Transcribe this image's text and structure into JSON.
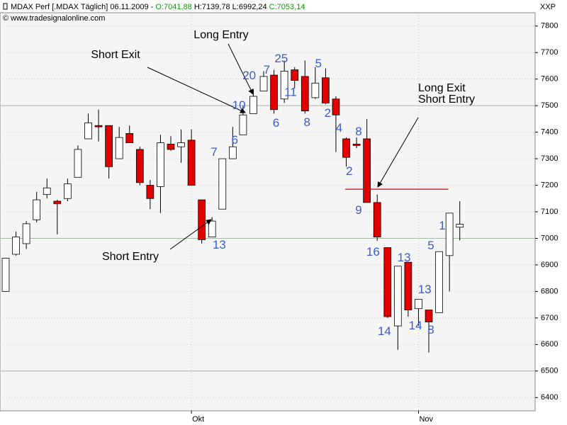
{
  "header": {
    "instrument": "MDAX Perf [.MDAX  Täglich] 06.11.2009 - ",
    "open": "O:7041,88",
    "high": "H:7139,78",
    "low": "L:6992,24",
    "close": "C:7053,14",
    "source": "© www.tradesignalonline.com",
    "corner": "XXP"
  },
  "chart_data": {
    "type": "candlestick",
    "open": [
      6800,
      6940,
      6980,
      7070,
      7165,
      7140,
      7150,
      7230,
      7375,
      7425,
      7425,
      7300,
      7395,
      7335,
      7200,
      7195,
      7355,
      7345,
      7370,
      7145,
      7005,
      7110,
      7300,
      7390,
      7470,
      7555,
      7615,
      7525,
      7635,
      7610,
      7530,
      7605,
      7525,
      7375,
      7355,
      7375,
      7135,
      6965,
      6670,
      6910,
      6735,
      6730,
      6720,
      6935,
      7041.88
    ],
    "high": [
      6925,
      7025,
      7065,
      7175,
      7225,
      7145,
      7225,
      7350,
      7470,
      7485,
      7425,
      7420,
      7425,
      7345,
      7220,
      7390,
      7385,
      7410,
      7410,
      7145,
      7080,
      7300,
      7420,
      7500,
      7560,
      7630,
      7635,
      7670,
      7645,
      7670,
      7645,
      7640,
      7535,
      7380,
      7380,
      7450,
      7165,
      6965,
      6895,
      6910,
      6770,
      6730,
      6950,
      7095,
      7139.78
    ],
    "low": [
      6800,
      6935,
      6960,
      7060,
      7150,
      7015,
      7140,
      7230,
      7375,
      7365,
      7225,
      7300,
      7360,
      7200,
      7110,
      7095,
      7330,
      7285,
      7200,
      6980,
      7005,
      7110,
      7300,
      7390,
      7470,
      7555,
      7470,
      7510,
      7565,
      7470,
      7525,
      7505,
      7325,
      7270,
      7340,
      7135,
      6990,
      6700,
      6580,
      6705,
      6670,
      6570,
      6720,
      6800,
      6992.24
    ],
    "close": [
      6925,
      7005,
      7055,
      7145,
      7190,
      7130,
      7205,
      7335,
      7435,
      7420,
      7270,
      7380,
      7360,
      7210,
      7150,
      7360,
      7335,
      7360,
      7200,
      6995,
      7065,
      7300,
      7345,
      7465,
      7535,
      7610,
      7485,
      7630,
      7595,
      7480,
      7585,
      7510,
      7465,
      7305,
      7350,
      7135,
      7005,
      6705,
      6895,
      6730,
      6770,
      6685,
      6950,
      7095,
      7053.14
    ],
    "up_color": "#ffffff",
    "down_color": "#e00000",
    "xlim": [
      -0.55,
      51.3
    ],
    "xticks": [
      {
        "value": 18,
        "label": "Okt"
      },
      {
        "value": 40,
        "label": "Nov"
      }
    ],
    "ylim": [
      6350,
      7850
    ],
    "yticks": [
      6400,
      6500,
      6600,
      6700,
      6800,
      6900,
      7000,
      7100,
      7200,
      7300,
      7400,
      7500,
      7600,
      7700,
      7800
    ],
    "major_grid": [
      6500,
      7000,
      7500
    ],
    "hline": {
      "value": 7185,
      "x": [
        32.9,
        42.9
      ],
      "color": "#e00000"
    },
    "count_color": "#3a5ccc",
    "counts": [
      {
        "text": "20",
        "x": 23.6,
        "y": 7611
      },
      {
        "text": "7",
        "x": 25.3,
        "y": 7632
      },
      {
        "text": "25",
        "x": 26.7,
        "y": 7675
      },
      {
        "text": "5",
        "x": 30.3,
        "y": 7656
      },
      {
        "text": "11",
        "x": 27.6,
        "y": 7549
      },
      {
        "text": "6",
        "x": 26.2,
        "y": 7432
      },
      {
        "text": "8",
        "x": 29.2,
        "y": 7435
      },
      {
        "text": "2",
        "x": 31.2,
        "y": 7469
      },
      {
        "text": "4",
        "x": 32.3,
        "y": 7413
      },
      {
        "text": "8",
        "x": 34.2,
        "y": 7400
      },
      {
        "text": "2",
        "x": 33.3,
        "y": 7251
      },
      {
        "text": "10",
        "x": 22.6,
        "y": 7499
      },
      {
        "text": "6",
        "x": 22.2,
        "y": 7368
      },
      {
        "text": "7",
        "x": 20.2,
        "y": 7323
      },
      {
        "text": "13",
        "x": 20.7,
        "y": 6973
      },
      {
        "text": "9",
        "x": 34.2,
        "y": 7104
      },
      {
        "text": "16",
        "x": 35.6,
        "y": 6947
      },
      {
        "text": "13",
        "x": 38.6,
        "y": 6925
      },
      {
        "text": "14",
        "x": 36.7,
        "y": 6648
      },
      {
        "text": "13",
        "x": 40.6,
        "y": 6805
      },
      {
        "text": "14",
        "x": 39.7,
        "y": 6669
      },
      {
        "text": "8",
        "x": 41.2,
        "y": 6653
      },
      {
        "text": "5",
        "x": 41.2,
        "y": 6971
      },
      {
        "text": "1",
        "x": 42.3,
        "y": 7045
      }
    ],
    "annotations": {
      "long_entry": "Long Entry",
      "short_exit": "Short Exit",
      "short_entry": "Short Entry",
      "long_exit": "Long Exit",
      "short_entry_2": "Short Entry"
    }
  }
}
